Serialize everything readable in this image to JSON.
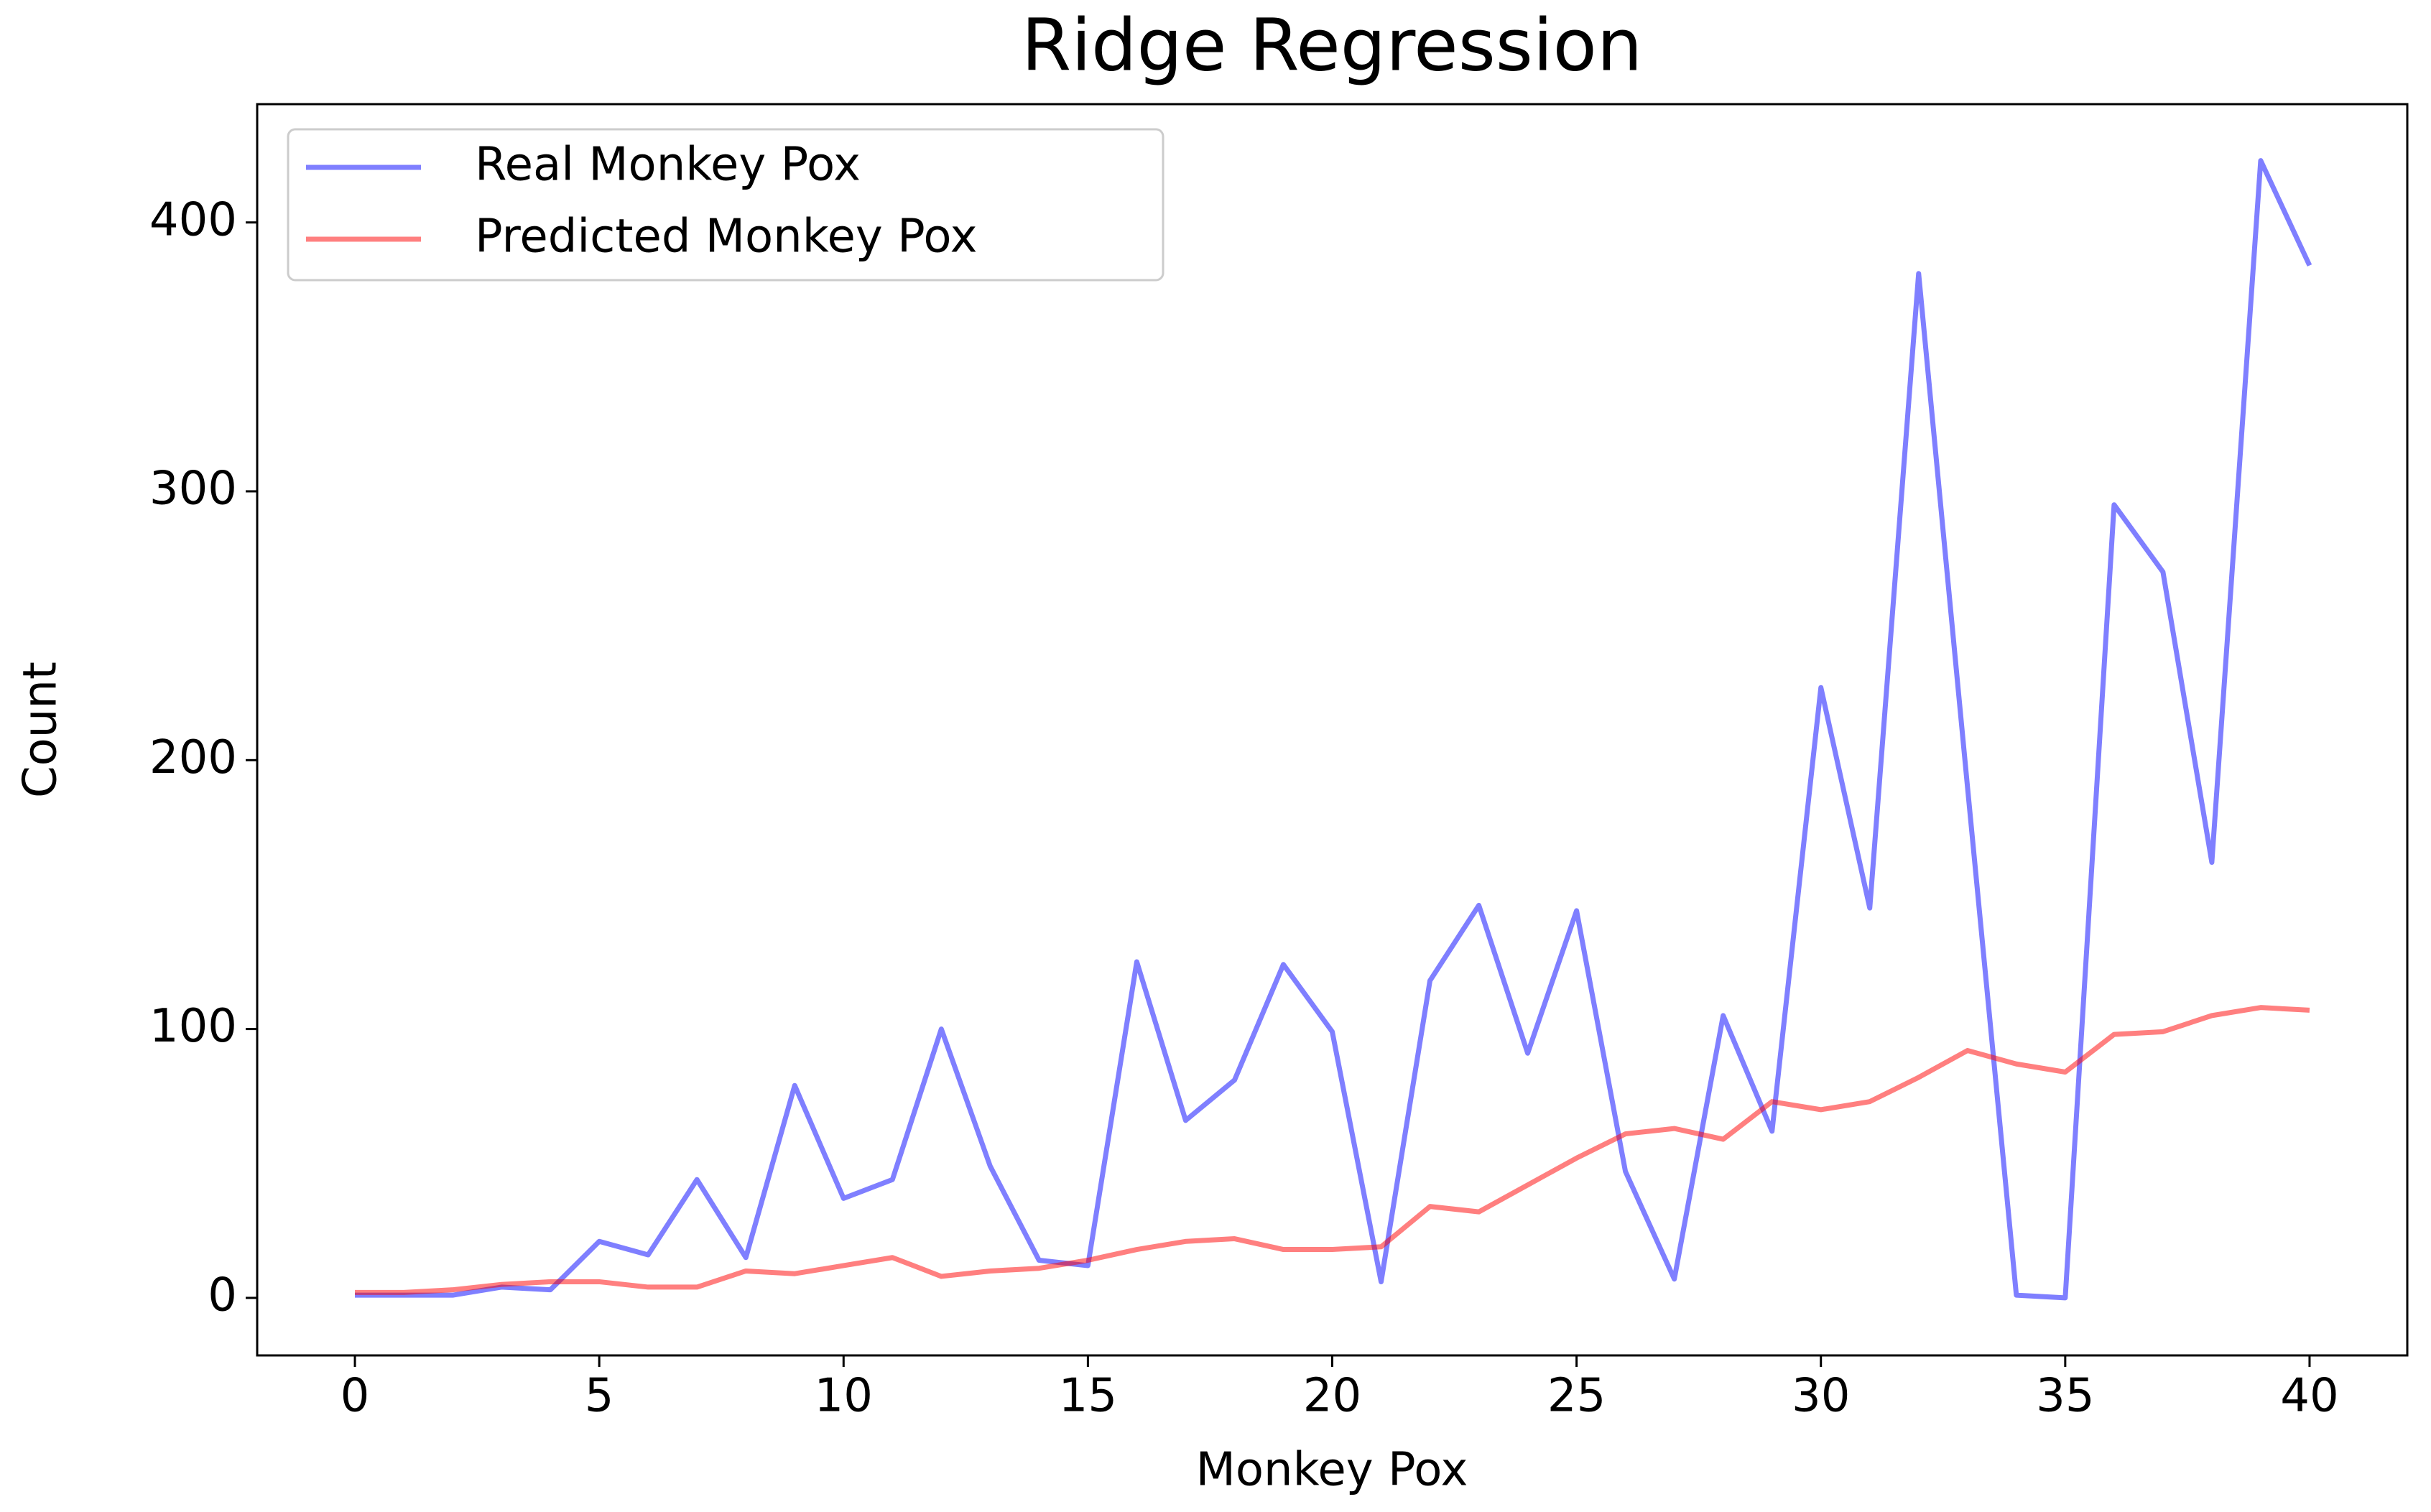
{
  "chart_data": {
    "type": "line",
    "title": "Ridge Regression",
    "xlabel": "Monkey Pox",
    "ylabel": "Count",
    "x": [
      0,
      1,
      2,
      3,
      4,
      5,
      6,
      7,
      8,
      9,
      10,
      11,
      12,
      13,
      14,
      15,
      16,
      17,
      18,
      19,
      20,
      21,
      22,
      23,
      24,
      25,
      26,
      27,
      28,
      29,
      30,
      31,
      32,
      33,
      34,
      35,
      36,
      37,
      38,
      39,
      40
    ],
    "series": [
      {
        "name": "Real Monkey Pox",
        "color": "blue",
        "values": [
          1,
          1,
          1,
          4,
          3,
          21,
          16,
          44,
          15,
          79,
          37,
          44,
          100,
          49,
          14,
          12,
          125,
          66,
          81,
          124,
          99,
          6,
          118,
          146,
          91,
          144,
          47,
          7,
          105,
          62,
          227,
          145,
          381,
          190,
          1,
          0,
          295,
          270,
          162,
          423,
          384
        ]
      },
      {
        "name": "Predicted Monkey Pox",
        "color": "red",
        "values": [
          2,
          2,
          3,
          5,
          6,
          6,
          4,
          4,
          10,
          9,
          12,
          15,
          8,
          10,
          11,
          14,
          18,
          21,
          22,
          18,
          18,
          19,
          34,
          32,
          42,
          52,
          61,
          63,
          59,
          73,
          70,
          73,
          82,
          92,
          87,
          84,
          98,
          99,
          105,
          108,
          107
        ]
      }
    ],
    "xlim": [
      -2,
      42
    ],
    "ylim": [
      -21.4,
      444
    ],
    "xticks": [
      0,
      5,
      10,
      15,
      20,
      25,
      30,
      35,
      40
    ],
    "yticks": [
      0,
      100,
      200,
      300,
      400
    ],
    "legend": "upper left",
    "grid": false
  }
}
